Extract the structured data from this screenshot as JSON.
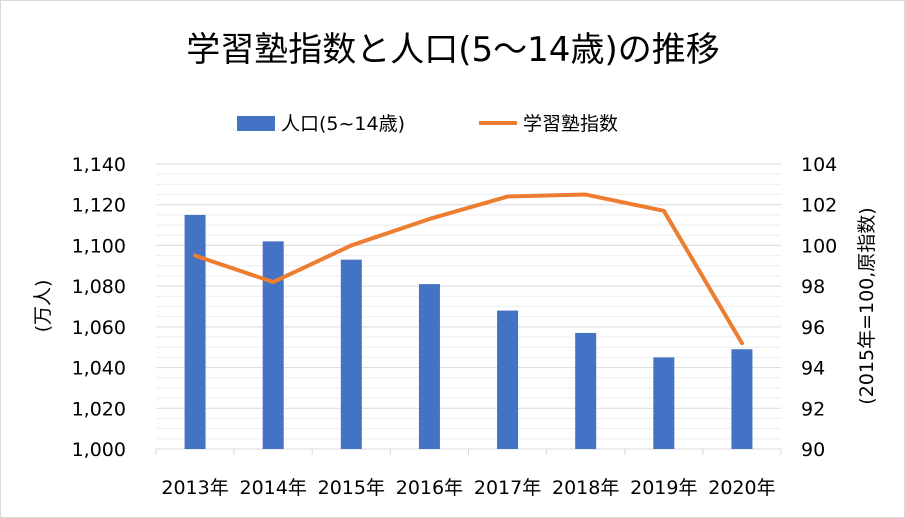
{
  "chart_data": {
    "type": "bar+line",
    "title": "学習塾指数と人口(5～14歳)の推移",
    "categories": [
      "2013年",
      "2014年",
      "2015年",
      "2016年",
      "2017年",
      "2018年",
      "2019年",
      "2020年"
    ],
    "series": [
      {
        "name": "人口(5~14歳)",
        "type": "bar",
        "axis": "left",
        "color": "#4472C4",
        "values": [
          1115,
          1102,
          1093,
          1081,
          1068,
          1057,
          1045,
          1049
        ]
      },
      {
        "name": "学習塾指数",
        "type": "line",
        "axis": "right",
        "color": "#ED7D31",
        "values": [
          99.5,
          98.2,
          100.0,
          101.3,
          102.4,
          102.5,
          101.7,
          95.2
        ]
      }
    ],
    "y_left": {
      "label": "(万人)",
      "ylim": [
        1000,
        1140
      ],
      "ticks": [
        1000,
        1020,
        1040,
        1060,
        1080,
        1100,
        1120,
        1140
      ],
      "tick_labels": [
        "1,000",
        "1,020",
        "1,040",
        "1,060",
        "1,080",
        "1,100",
        "1,120",
        "1,140"
      ]
    },
    "y_right": {
      "label": "(2015年=100,原指数)",
      "ylim": [
        90,
        104
      ],
      "ticks": [
        90,
        92,
        94,
        96,
        98,
        100,
        102,
        104
      ],
      "tick_labels": [
        "90",
        "92",
        "94",
        "96",
        "98",
        "100",
        "102",
        "104"
      ]
    },
    "grid": true,
    "legend_position": "top-center"
  }
}
